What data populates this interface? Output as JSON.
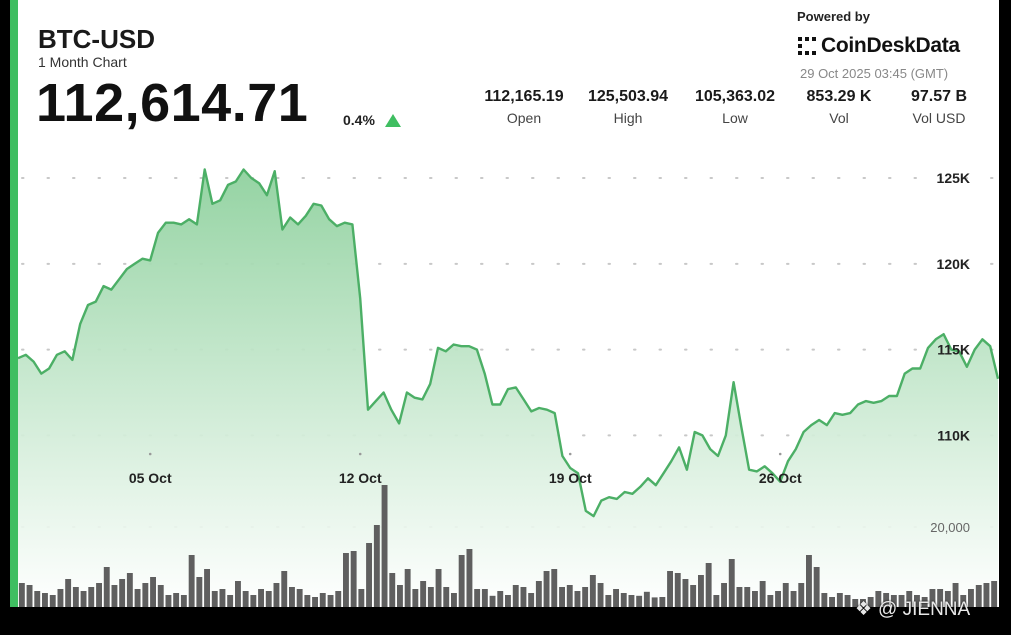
{
  "header": {
    "ticker": "BTC-USD",
    "subtitle": "1 Month Chart",
    "price": "112,614.71",
    "change_pct": "0.4%",
    "change_direction": "up"
  },
  "branding": {
    "powered_by": "Powered by",
    "logo_text": "CoinDeskData",
    "timestamp": "29 Oct 2025 03:45 (GMT)"
  },
  "stats": [
    {
      "value": "112,165.19",
      "label": "Open"
    },
    {
      "value": "125,503.94",
      "label": "High"
    },
    {
      "value": "105,363.02",
      "label": "Low"
    },
    {
      "value": "853.29 K",
      "label": "Vol"
    },
    {
      "value": "97.57 B",
      "label": "Vol USD"
    }
  ],
  "watermark": "@ JIENNA",
  "colors": {
    "accent": "#3fbe61",
    "area_top": "#8fd19e",
    "line": "#4caf66",
    "volume_bar": "#5f5f5f",
    "grid_dots": "#c8c8c8"
  },
  "chart_data": {
    "type": "area",
    "price_ticks": [
      "125K",
      "120K",
      "115K",
      "110K"
    ],
    "price_tick_values": [
      125000,
      120000,
      115000,
      110000
    ],
    "volume_tick": "20,000",
    "x_ticks": [
      {
        "label": "05 Oct",
        "index": 17
      },
      {
        "label": "12 Oct",
        "index": 44
      },
      {
        "label": "19 Oct",
        "index": 71
      },
      {
        "label": "26 Oct",
        "index": 98
      }
    ],
    "price_range": [
      100000,
      127800
    ],
    "volume_range": [
      0,
      40000
    ],
    "grid": "dotted",
    "price": [
      114500,
      114700,
      114300,
      113600,
      113900,
      114700,
      114900,
      114400,
      116500,
      117600,
      117800,
      118700,
      118500,
      119100,
      119700,
      120000,
      120300,
      120200,
      121800,
      122400,
      122400,
      122300,
      122600,
      122300,
      125500,
      123500,
      123700,
      124600,
      124800,
      125500,
      125000,
      124700,
      124000,
      125400,
      122000,
      122700,
      122300,
      122800,
      123500,
      123400,
      122600,
      122200,
      122400,
      122300,
      118000,
      111500,
      112000,
      112500,
      111500,
      110700,
      112500,
      112200,
      112100,
      113000,
      115100,
      114900,
      115300,
      115200,
      115200,
      115000,
      113600,
      111800,
      111800,
      112700,
      112800,
      112100,
      111400,
      111600,
      111500,
      111300,
      108800,
      108100,
      107800,
      105600,
      105300,
      106200,
      106400,
      106300,
      106700,
      106600,
      107000,
      107500,
      107100,
      107800,
      108500,
      109300,
      108000,
      110200,
      110000,
      109200,
      108800,
      110000,
      113100,
      110500,
      108000,
      107900,
      108200,
      107800,
      107300,
      108500,
      109200,
      110200,
      110600,
      110900,
      110600,
      111300,
      111200,
      111300,
      111800,
      112000,
      111900,
      112000,
      112300,
      112300,
      113600,
      113900,
      113900,
      115100,
      115600,
      115900,
      115000,
      114900,
      114000,
      115000,
      115600,
      115200,
      113300
    ],
    "volume": [
      6000,
      5500,
      4000,
      3500,
      3000,
      4500,
      7000,
      5000,
      4000,
      5000,
      6000,
      10000,
      5500,
      7000,
      8500,
      4500,
      6000,
      7500,
      5500,
      3000,
      3500,
      3000,
      13000,
      7500,
      9500,
      4000,
      4500,
      3000,
      6500,
      4000,
      3000,
      4500,
      4000,
      6000,
      9000,
      5000,
      4500,
      3000,
      2500,
      3500,
      3000,
      4000,
      13500,
      14000,
      4500,
      16000,
      20500,
      30500,
      8500,
      5500,
      9500,
      4500,
      6500,
      5000,
      9500,
      5000,
      3500,
      13000,
      14500,
      4500,
      4500,
      2800,
      4000,
      3000,
      5500,
      5000,
      3500,
      6500,
      9000,
      9500,
      5000,
      5500,
      4000,
      5000,
      8000,
      6000,
      3000,
      4500,
      3500,
      3000,
      2800,
      3800,
      2400,
      2500,
      9000,
      8500,
      7000,
      5500,
      8000,
      11000,
      3000,
      6000,
      12000,
      5000,
      5000,
      4000,
      6500,
      3000,
      4000,
      6000,
      4000,
      6000,
      13000,
      10000,
      3500,
      2500,
      3500,
      3000,
      2000,
      2000,
      2500,
      4000,
      3500,
      3000,
      3000,
      4000,
      3000,
      2500,
      4500,
      4500,
      4000,
      6000,
      3000,
      4500,
      5500,
      6000,
      6500
    ]
  }
}
